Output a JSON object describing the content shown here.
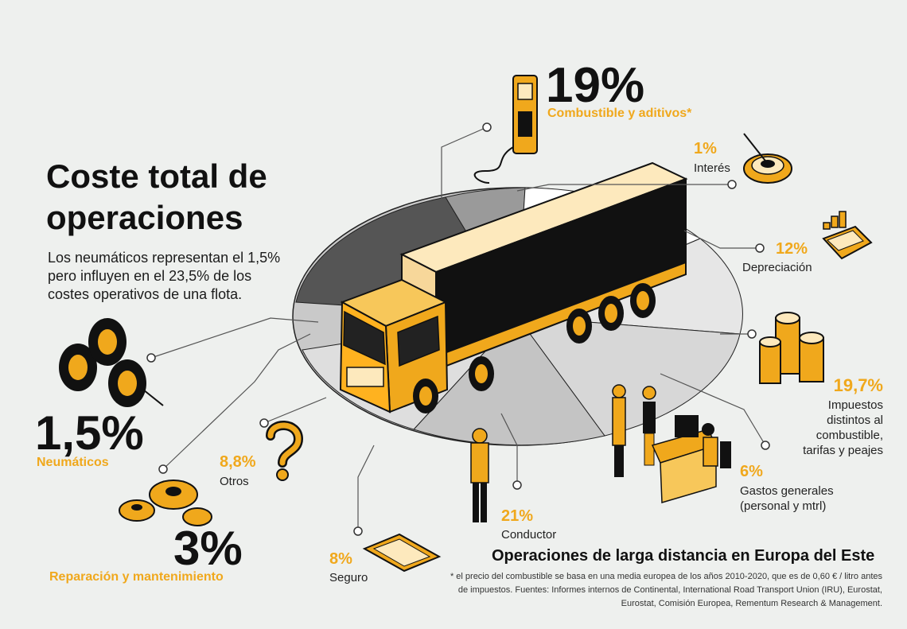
{
  "title": {
    "line1": "Coste total de",
    "line2": "operaciones"
  },
  "subtitle": {
    "line1": "Los neumáticos representan el 1,5%",
    "line2": "pero influyen en el 23,5% de los",
    "line3": "costes operativos de una flota."
  },
  "items": {
    "fuel": {
      "pct": "19%",
      "label": "Combustible y aditivos*"
    },
    "interest": {
      "pct": "1%",
      "label": "Interés"
    },
    "depreciation": {
      "pct": "12%",
      "label": "Depreciación"
    },
    "taxes": {
      "pct": "19,7%",
      "label_lines": [
        "Impuestos",
        "distintos al",
        "combustible,",
        "tarifas y peajes"
      ]
    },
    "overhead": {
      "pct": "6%",
      "label_lines": [
        "Gastos generales",
        "(personal y mtrl)"
      ]
    },
    "driver": {
      "pct": "21%",
      "label": "Conductor"
    },
    "insurance": {
      "pct": "8%",
      "label": "Seguro"
    },
    "other": {
      "pct": "8,8%",
      "label": "Otros"
    },
    "tyres": {
      "pct": "1,5%",
      "label": "Neumáticos"
    },
    "repair": {
      "pct": "3%",
      "label": "Reparación y mantenimiento"
    }
  },
  "heading": "Operaciones de larga distancia en Europa del Este",
  "footnote": {
    "line1": "* el precio del combustible se basa en una media europea de los años 2010-2020, que es de 0,60 € / litro antes",
    "line2": "de impuestos. Fuentes: Informes internos de Continental, International Road Transport Union (IRU), Eurostat,",
    "line3": "Eurostat, Comisión Europea, Rementum Research & Management."
  },
  "colors": {
    "accent": "#f0a81c",
    "ink": "#111111",
    "background": "#eef0ee",
    "pie_dark": "#555555",
    "pie_light": "#c9c9c9"
  }
}
